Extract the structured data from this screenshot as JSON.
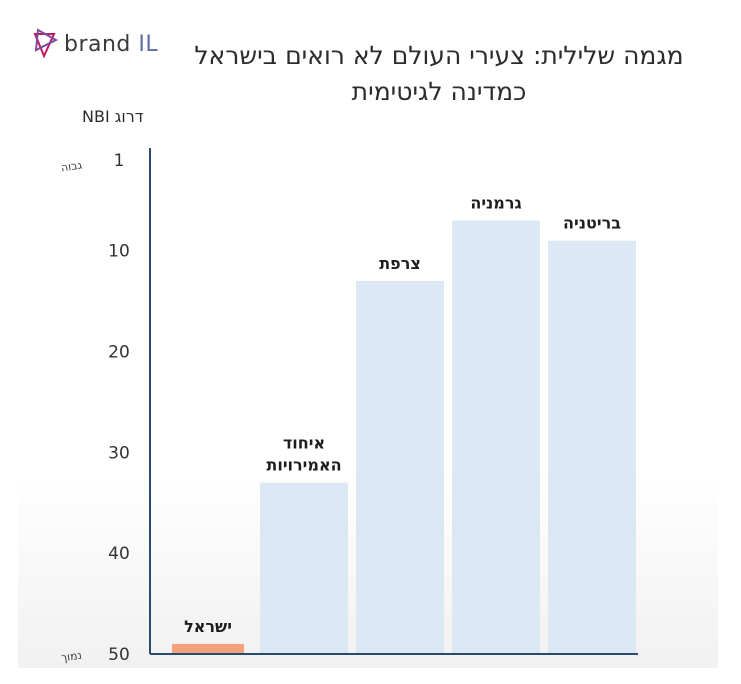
{
  "logo": {
    "brand": "brand",
    "suffix": "IL"
  },
  "chart_data": {
    "type": "bar",
    "title": "מגמה שלילית: צעירי העולם לא רואים בישראל כמדינה לגיטימית",
    "ylabel": "דרוג NBI",
    "yticks": [
      1,
      10,
      20,
      30,
      40,
      50
    ],
    "ylim": [
      1,
      50
    ],
    "yaxis_inverted": true,
    "y_top_annotation": "גבוה",
    "y_bottom_annotation": "נמוך",
    "categories": [
      "ישראל",
      "איחוד האמירויות",
      "צרפת",
      "גרמניה",
      "בריטניה"
    ],
    "category_lines": [
      [
        "ישראל"
      ],
      [
        "איחוד",
        "האמירויות"
      ],
      [
        "צרפת"
      ],
      [
        "גרמניה"
      ],
      [
        "בריטניה"
      ]
    ],
    "values": [
      49,
      33,
      13,
      7,
      9
    ],
    "colors": [
      "#f4a07c",
      "#dce8f6",
      "#dce8f6",
      "#dce8f6",
      "#dce8f6"
    ],
    "axis_color": "#2a4a6e",
    "grid": false
  }
}
